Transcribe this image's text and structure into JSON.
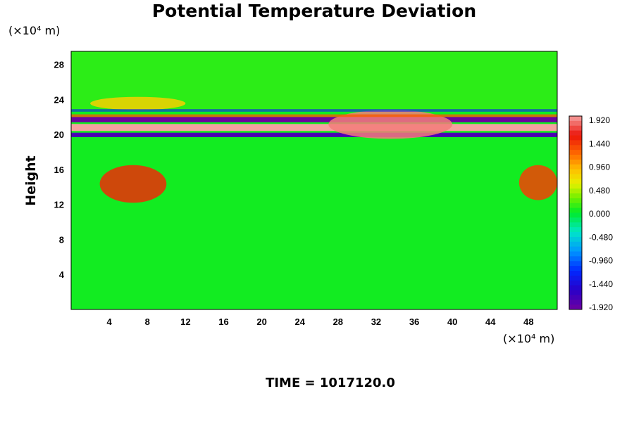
{
  "chart_data": {
    "type": "heatmap",
    "title": "Potential Temperature Deviation",
    "ylabel": "Height",
    "y_unit_label": "(×10⁴ m)",
    "x_unit_label": "(×10⁴ m)",
    "xlim": [
      0,
      51
    ],
    "ylim": [
      0,
      29.5
    ],
    "x_ticks": [
      "4",
      "8",
      "12",
      "16",
      "20",
      "24",
      "28",
      "32",
      "36",
      "40",
      "44",
      "48"
    ],
    "y_ticks": [
      "4",
      "8",
      "12",
      "16",
      "20",
      "24",
      "28"
    ],
    "colorbar": {
      "min": -2.0,
      "max": 2.0,
      "labels": [
        "1.920",
        "1.440",
        "0.960",
        "0.480",
        "0.000",
        "-0.480",
        "-0.960",
        "-1.440",
        "-1.920"
      ]
    },
    "features": [
      {
        "name": "warm layer at tropopause",
        "x": [
          0,
          51
        ],
        "y": [
          20.4,
          21.2
        ],
        "value": 2.0
      },
      {
        "name": "cold layer above",
        "x": [
          0,
          51
        ],
        "y": [
          21.4,
          22.0
        ],
        "value": -2.0
      },
      {
        "name": "cold layer below",
        "x": [
          0,
          51
        ],
        "y": [
          19.7,
          20.2
        ],
        "value": -1.8
      },
      {
        "name": "warm region upper left",
        "x": [
          2,
          12
        ],
        "y": [
          22.8,
          24.3
        ],
        "value": 0.8
      },
      {
        "name": "warm anomaly left",
        "x": [
          3,
          10
        ],
        "y": [
          12.2,
          16.5
        ],
        "value": 1.5
      },
      {
        "name": "warm anomaly right edge",
        "x": [
          47,
          51
        ],
        "y": [
          12.5,
          16.5
        ],
        "value": 1.4
      },
      {
        "name": "warm bulge center",
        "x": [
          27,
          40
        ],
        "y": [
          19.5,
          22.8
        ],
        "value": 1.9
      }
    ]
  },
  "footer": {
    "time_label": "TIME = 1017120.0"
  }
}
